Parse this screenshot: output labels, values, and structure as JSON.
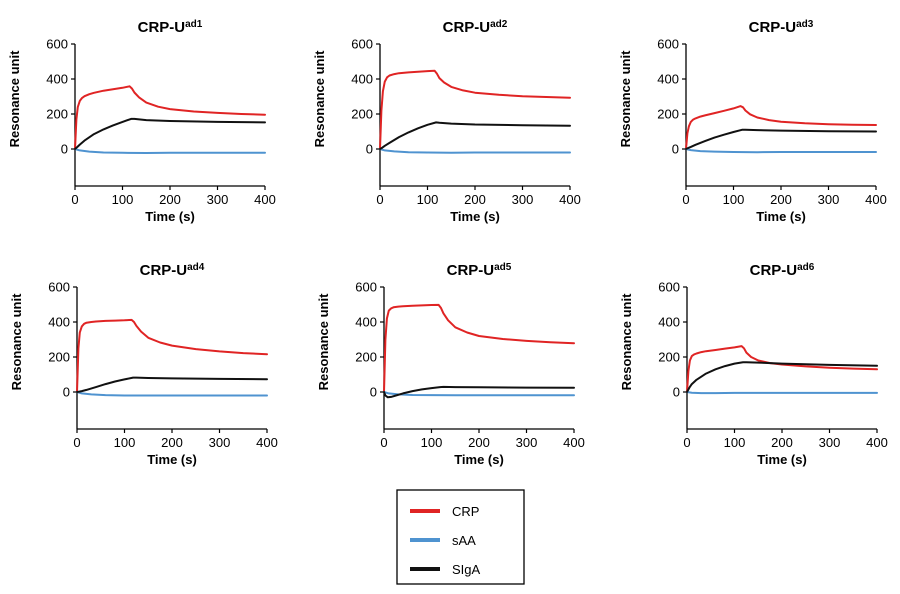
{
  "chart_data": [
    {
      "type": "line",
      "title": "CRP-U",
      "title_sup": "ad1",
      "xlabel": "Time (s)",
      "ylabel": "Resonance unit",
      "xlim": [
        0,
        400
      ],
      "ylim": [
        -200,
        600
      ],
      "x_ticks": [
        "0",
        "100",
        "200",
        "300",
        "400"
      ],
      "y_ticks": [
        "0",
        "200",
        "400",
        "600"
      ],
      "series": [
        {
          "name": "CRP",
          "color": "#e02424",
          "x": [
            0,
            3,
            6,
            10,
            15,
            20,
            30,
            40,
            60,
            80,
            100,
            115,
            120,
            125,
            135,
            150,
            175,
            200,
            250,
            300,
            350,
            400
          ],
          "y": [
            0,
            170,
            240,
            275,
            292,
            302,
            313,
            321,
            333,
            342,
            350,
            358,
            345,
            323,
            295,
            265,
            242,
            228,
            214,
            206,
            200,
            196
          ]
        },
        {
          "name": "sAA",
          "color": "#4f93d0",
          "x": [
            0,
            10,
            30,
            60,
            100,
            150,
            200,
            300,
            400
          ],
          "y": [
            0,
            -8,
            -15,
            -20,
            -22,
            -23,
            -22,
            -22,
            -22
          ]
        },
        {
          "name": "SIgA",
          "color": "#111111",
          "x": [
            0,
            5,
            10,
            20,
            40,
            60,
            80,
            100,
            118,
            125,
            150,
            200,
            300,
            400
          ],
          "y": [
            0,
            12,
            25,
            48,
            85,
            112,
            135,
            155,
            172,
            172,
            165,
            160,
            155,
            152
          ]
        }
      ]
    },
    {
      "type": "line",
      "title": "CRP-U",
      "title_sup": "ad2",
      "xlabel": "Time (s)",
      "ylabel": "Resonance unit",
      "xlim": [
        0,
        400
      ],
      "ylim": [
        -200,
        600
      ],
      "x_ticks": [
        "0",
        "100",
        "200",
        "300",
        "400"
      ],
      "y_ticks": [
        "0",
        "200",
        "400",
        "600"
      ],
      "series": [
        {
          "name": "CRP",
          "color": "#e02424",
          "x": [
            0,
            3,
            6,
            10,
            15,
            20,
            30,
            40,
            60,
            80,
            100,
            115,
            120,
            125,
            135,
            150,
            175,
            200,
            250,
            300,
            350,
            400
          ],
          "y": [
            0,
            220,
            330,
            385,
            410,
            420,
            428,
            433,
            438,
            442,
            445,
            447,
            430,
            405,
            380,
            355,
            335,
            322,
            310,
            302,
            297,
            293
          ]
        },
        {
          "name": "sAA",
          "color": "#4f93d0",
          "x": [
            0,
            10,
            30,
            60,
            100,
            150,
            200,
            300,
            400
          ],
          "y": [
            0,
            -8,
            -14,
            -18,
            -20,
            -21,
            -20,
            -20,
            -20
          ]
        },
        {
          "name": "SIgA",
          "color": "#111111",
          "x": [
            0,
            5,
            10,
            20,
            40,
            60,
            80,
            100,
            118,
            125,
            150,
            200,
            300,
            400
          ],
          "y": [
            0,
            8,
            18,
            35,
            68,
            95,
            118,
            138,
            152,
            150,
            145,
            140,
            136,
            133
          ]
        }
      ]
    },
    {
      "type": "line",
      "title": "CRP-U",
      "title_sup": "ad3",
      "xlabel": "Time (s)",
      "ylabel": "Resonance unit",
      "xlim": [
        0,
        400
      ],
      "ylim": [
        -200,
        600
      ],
      "x_ticks": [
        "0",
        "100",
        "200",
        "300",
        "400"
      ],
      "y_ticks": [
        "0",
        "200",
        "400",
        "600"
      ],
      "series": [
        {
          "name": "CRP",
          "color": "#e02424",
          "x": [
            0,
            3,
            6,
            10,
            15,
            20,
            30,
            40,
            60,
            80,
            100,
            115,
            120,
            125,
            135,
            150,
            175,
            200,
            250,
            300,
            350,
            400
          ],
          "y": [
            0,
            90,
            130,
            155,
            168,
            175,
            185,
            192,
            205,
            218,
            232,
            245,
            238,
            220,
            198,
            180,
            165,
            156,
            147,
            142,
            139,
            137
          ]
        },
        {
          "name": "sAA",
          "color": "#4f93d0",
          "x": [
            0,
            10,
            30,
            60,
            100,
            150,
            200,
            300,
            400
          ],
          "y": [
            0,
            -6,
            -12,
            -15,
            -17,
            -18,
            -17,
            -17,
            -17
          ]
        },
        {
          "name": "SIgA",
          "color": "#111111",
          "x": [
            0,
            5,
            10,
            20,
            40,
            60,
            80,
            100,
            118,
            125,
            150,
            200,
            300,
            400
          ],
          "y": [
            0,
            6,
            12,
            24,
            45,
            65,
            82,
            97,
            110,
            110,
            108,
            105,
            102,
            100
          ]
        }
      ]
    },
    {
      "type": "line",
      "title": "CRP-U",
      "title_sup": "ad4",
      "xlabel": "Time (s)",
      "ylabel": "Resonance unit",
      "xlim": [
        0,
        400
      ],
      "ylim": [
        -200,
        600
      ],
      "x_ticks": [
        "0",
        "100",
        "200",
        "300",
        "400"
      ],
      "y_ticks": [
        "0",
        "200",
        "400",
        "600"
      ],
      "series": [
        {
          "name": "CRP",
          "color": "#e02424",
          "x": [
            0,
            3,
            6,
            10,
            15,
            20,
            30,
            40,
            60,
            80,
            100,
            115,
            120,
            125,
            135,
            150,
            175,
            200,
            250,
            300,
            350,
            400
          ],
          "y": [
            0,
            250,
            340,
            375,
            390,
            396,
            400,
            403,
            406,
            408,
            410,
            412,
            400,
            378,
            345,
            310,
            283,
            265,
            245,
            232,
            222,
            216
          ]
        },
        {
          "name": "sAA",
          "color": "#4f93d0",
          "x": [
            0,
            10,
            30,
            60,
            100,
            150,
            200,
            300,
            400
          ],
          "y": [
            0,
            -8,
            -14,
            -18,
            -20,
            -20,
            -20,
            -20,
            -20
          ]
        },
        {
          "name": "SIgA",
          "color": "#111111",
          "x": [
            0,
            5,
            10,
            20,
            40,
            60,
            80,
            100,
            118,
            125,
            150,
            200,
            300,
            400
          ],
          "y": [
            0,
            2,
            5,
            12,
            28,
            45,
            60,
            72,
            82,
            82,
            80,
            78,
            75,
            73
          ]
        }
      ]
    },
    {
      "type": "line",
      "title": "CRP-U",
      "title_sup": "ad5",
      "xlabel": "Time (s)",
      "ylabel": "Resonance unit",
      "xlim": [
        0,
        400
      ],
      "ylim": [
        -200,
        600
      ],
      "x_ticks": [
        "0",
        "100",
        "200",
        "300",
        "400"
      ],
      "y_ticks": [
        "0",
        "200",
        "400",
        "600"
      ],
      "series": [
        {
          "name": "CRP",
          "color": "#e02424",
          "x": [
            0,
            3,
            6,
            10,
            15,
            20,
            30,
            40,
            60,
            80,
            100,
            115,
            120,
            125,
            135,
            150,
            175,
            200,
            250,
            300,
            350,
            400
          ],
          "y": [
            0,
            300,
            420,
            465,
            478,
            484,
            488,
            490,
            493,
            495,
            497,
            498,
            480,
            450,
            410,
            370,
            340,
            320,
            303,
            292,
            284,
            279
          ]
        },
        {
          "name": "sAA",
          "color": "#4f93d0",
          "x": [
            0,
            10,
            30,
            60,
            100,
            150,
            200,
            300,
            400
          ],
          "y": [
            0,
            -8,
            -14,
            -17,
            -18,
            -19,
            -19,
            -19,
            -19
          ]
        },
        {
          "name": "SIgA",
          "color": "#111111",
          "x": [
            0,
            3,
            8,
            15,
            25,
            40,
            60,
            80,
            100,
            118,
            125,
            150,
            200,
            300,
            400
          ],
          "y": [
            0,
            -20,
            -30,
            -28,
            -20,
            -8,
            5,
            15,
            22,
            28,
            29,
            28,
            27,
            25,
            24
          ]
        }
      ]
    },
    {
      "type": "line",
      "title": "CRP-U",
      "title_sup": "ad6",
      "xlabel": "Time (s)",
      "ylabel": "Resonance unit",
      "xlim": [
        0,
        400
      ],
      "ylim": [
        -200,
        600
      ],
      "x_ticks": [
        "0",
        "100",
        "200",
        "300",
        "400"
      ],
      "y_ticks": [
        "0",
        "200",
        "400",
        "600"
      ],
      "series": [
        {
          "name": "CRP",
          "color": "#e02424",
          "x": [
            0,
            3,
            6,
            10,
            15,
            20,
            30,
            40,
            60,
            80,
            100,
            115,
            120,
            125,
            135,
            150,
            175,
            200,
            250,
            300,
            350,
            400
          ],
          "y": [
            0,
            120,
            180,
            205,
            215,
            220,
            228,
            233,
            240,
            248,
            255,
            262,
            250,
            225,
            200,
            180,
            165,
            157,
            146,
            139,
            134,
            130
          ]
        },
        {
          "name": "sAA",
          "color": "#4f93d0",
          "x": [
            0,
            10,
            30,
            60,
            100,
            150,
            200,
            300,
            400
          ],
          "y": [
            0,
            -4,
            -6,
            -6,
            -5,
            -5,
            -5,
            -5,
            -5
          ]
        },
        {
          "name": "SIgA",
          "color": "#111111",
          "x": [
            0,
            5,
            10,
            20,
            40,
            60,
            80,
            100,
            118,
            125,
            150,
            200,
            300,
            400
          ],
          "y": [
            0,
            25,
            45,
            70,
            105,
            130,
            148,
            162,
            170,
            170,
            168,
            162,
            155,
            150
          ]
        }
      ]
    }
  ],
  "legend": {
    "items": [
      {
        "label": "CRP",
        "color": "#e02424"
      },
      {
        "label": "sAA",
        "color": "#4f93d0"
      },
      {
        "label": "SIgA",
        "color": "#111111"
      }
    ]
  }
}
